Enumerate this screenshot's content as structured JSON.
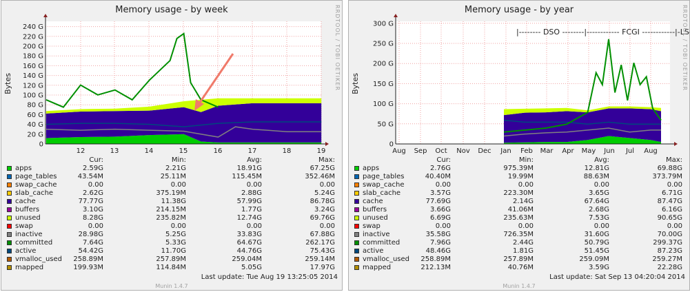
{
  "panels": [
    {
      "title": "Memory usage - by week",
      "ylabel": "Bytes",
      "rrdtool": "RRDTOOL / TOBI OETIKER",
      "y_ticks": [
        "0",
        "20 G",
        "40 G",
        "60 G",
        "80 G",
        "100 G",
        "120 G",
        "140 G",
        "160 G",
        "180 G",
        "200 G",
        "220 G",
        "240 G"
      ],
      "x_ticks": [
        "12",
        "13",
        "14",
        "15",
        "16",
        "17",
        "18",
        "19"
      ],
      "columns": [
        "Cur:",
        "Min:",
        "Avg:",
        "Max:"
      ],
      "rows": [
        {
          "name": "apps",
          "color": "#00cc00",
          "cur": "2.59G",
          "min": "2.21G",
          "avg": "18.91G",
          "max": "67.25G"
        },
        {
          "name": "page_tables",
          "color": "#0066b3",
          "cur": "43.54M",
          "min": "25.11M",
          "avg": "115.45M",
          "max": "352.46M"
        },
        {
          "name": "swap_cache",
          "color": "#ff8000",
          "cur": "0.00",
          "min": "0.00",
          "avg": "0.00",
          "max": "0.00"
        },
        {
          "name": "slab_cache",
          "color": "#ffcc00",
          "cur": "2.62G",
          "min": "375.19M",
          "avg": "2.88G",
          "max": "5.24G"
        },
        {
          "name": "cache",
          "color": "#330099",
          "cur": "77.77G",
          "min": "11.38G",
          "avg": "57.99G",
          "max": "86.78G"
        },
        {
          "name": "buffers",
          "color": "#990099",
          "cur": "3.10G",
          "min": "214.15M",
          "avg": "1.77G",
          "max": "3.24G"
        },
        {
          "name": "unused",
          "color": "#ccff00",
          "cur": "8.28G",
          "min": "235.82M",
          "avg": "12.74G",
          "max": "69.76G"
        },
        {
          "name": "swap",
          "color": "#ff0000",
          "cur": "0.00",
          "min": "0.00",
          "avg": "0.00",
          "max": "0.00"
        },
        {
          "name": "inactive",
          "color": "#808080",
          "cur": "28.98G",
          "min": "5.25G",
          "avg": "33.83G",
          "max": "67.88G"
        },
        {
          "name": "committed",
          "color": "#008f00",
          "cur": "7.64G",
          "min": "5.33G",
          "avg": "64.67G",
          "max": "262.17G"
        },
        {
          "name": "active",
          "color": "#00487d",
          "cur": "54.42G",
          "min": "11.70G",
          "avg": "44.76G",
          "max": "75.43G"
        },
        {
          "name": "vmalloc_used",
          "color": "#b35a00",
          "cur": "258.89M",
          "min": "257.89M",
          "avg": "259.04M",
          "max": "259.14M"
        },
        {
          "name": "mapped",
          "color": "#b38f00",
          "cur": "199.93M",
          "min": "114.84M",
          "avg": "5.05G",
          "max": "17.97G"
        }
      ],
      "last_update": "Last update: Tue Aug 19 13:25:05 2014",
      "munin": "Munin 1.4.7"
    },
    {
      "title": "Memory usage - by year",
      "ylabel": "Bytes",
      "rrdtool": "RRDTOOL / TOBI OETIKER",
      "y_ticks": [
        "0",
        "50 G",
        "100 G",
        "150 G",
        "200 G",
        "250 G",
        "300 G"
      ],
      "x_ticks": [
        "Aug",
        "Sep",
        "Oct",
        "Nov",
        "Dec",
        "Jan",
        "Feb",
        "Mar",
        "Apr",
        "May",
        "Jun",
        "Jul",
        "Aug"
      ],
      "annotation": "|-------- DSO --------|------------ FCGI ------------|-LS-|",
      "columns": [
        "Cur:",
        "Min:",
        "Avg:",
        "Max:"
      ],
      "rows": [
        {
          "name": "apps",
          "color": "#00cc00",
          "cur": "2.76G",
          "min": "975.39M",
          "avg": "12.81G",
          "max": "69.88G"
        },
        {
          "name": "page_tables",
          "color": "#0066b3",
          "cur": "40.40M",
          "min": "19.99M",
          "avg": "88.63M",
          "max": "373.79M"
        },
        {
          "name": "swap_cache",
          "color": "#ff8000",
          "cur": "0.00",
          "min": "0.00",
          "avg": "0.00",
          "max": "0.00"
        },
        {
          "name": "slab_cache",
          "color": "#ffcc00",
          "cur": "3.57G",
          "min": "223.30M",
          "avg": "3.65G",
          "max": "6.71G"
        },
        {
          "name": "cache",
          "color": "#330099",
          "cur": "77.69G",
          "min": "2.14G",
          "avg": "67.64G",
          "max": "87.47G"
        },
        {
          "name": "buffers",
          "color": "#990099",
          "cur": "3.66G",
          "min": "41.06M",
          "avg": "2.68G",
          "max": "6.16G"
        },
        {
          "name": "unused",
          "color": "#ccff00",
          "cur": "6.69G",
          "min": "235.63M",
          "avg": "7.53G",
          "max": "90.65G"
        },
        {
          "name": "swap",
          "color": "#ff0000",
          "cur": "0.00",
          "min": "0.00",
          "avg": "0.00",
          "max": "0.00"
        },
        {
          "name": "inactive",
          "color": "#808080",
          "cur": "35.58G",
          "min": "726.35M",
          "avg": "31.60G",
          "max": "70.00G"
        },
        {
          "name": "committed",
          "color": "#008f00",
          "cur": "7.96G",
          "min": "2.44G",
          "avg": "50.79G",
          "max": "299.37G"
        },
        {
          "name": "active",
          "color": "#00487d",
          "cur": "48.46G",
          "min": "1.81G",
          "avg": "51.45G",
          "max": "87.23G"
        },
        {
          "name": "vmalloc_used",
          "color": "#b35a00",
          "cur": "258.89M",
          "min": "257.89M",
          "avg": "259.09M",
          "max": "259.27M"
        },
        {
          "name": "mapped",
          "color": "#b38f00",
          "cur": "212.13M",
          "min": "40.76M",
          "avg": "3.59G",
          "max": "22.28G"
        }
      ],
      "last_update": "Last update: Sat Sep 13 04:20:04 2014",
      "munin": "Munin 1.4.7"
    }
  ],
  "chart_data": [
    {
      "type": "area",
      "title": "Memory usage - by week",
      "ylabel": "Bytes",
      "ylim": [
        0,
        250
      ],
      "y_unit": "G",
      "x_ticks": [
        "12",
        "13",
        "14",
        "15",
        "16",
        "17",
        "18",
        "19"
      ],
      "x_range": [
        11.0,
        19.0
      ],
      "series": [
        {
          "name": "apps",
          "color": "#00cc00",
          "x": [
            11,
            12,
            13,
            14,
            15,
            15.5,
            16,
            17,
            18,
            19
          ],
          "values": [
            12,
            14,
            15,
            18,
            20,
            5,
            3,
            3,
            3,
            3
          ]
        },
        {
          "name": "cache",
          "color": "#330099",
          "x": [
            11,
            12,
            13,
            14,
            15,
            15.5,
            16,
            17,
            18,
            19
          ],
          "values": [
            50,
            52,
            52,
            50,
            55,
            60,
            75,
            80,
            80,
            80
          ]
        },
        {
          "name": "unused",
          "color": "#ccff00",
          "x": [
            11,
            12,
            13,
            14,
            15,
            15.5,
            16,
            17,
            18,
            19
          ],
          "values": [
            5,
            5,
            5,
            8,
            12,
            25,
            15,
            10,
            10,
            10
          ]
        },
        {
          "name": "committed",
          "color": "#008f00",
          "x": [
            11,
            11.5,
            12,
            12.5,
            13,
            13.5,
            14,
            14.3,
            14.6,
            14.8,
            15,
            15.2,
            15.5,
            16
          ],
          "values": [
            90,
            75,
            120,
            100,
            110,
            90,
            130,
            150,
            170,
            215,
            225,
            125,
            90,
            75
          ]
        },
        {
          "name": "inactive",
          "color": "#808080",
          "x": [
            11,
            12,
            13,
            14,
            15,
            16,
            16.5,
            17,
            18,
            19
          ],
          "values": [
            30,
            28,
            30,
            28,
            26,
            14,
            35,
            30,
            25,
            25
          ]
        },
        {
          "name": "active",
          "color": "#00487d",
          "x": [
            11,
            12,
            13,
            14,
            15,
            16,
            17,
            18,
            19
          ],
          "values": [
            40,
            42,
            42,
            40,
            35,
            42,
            45,
            45,
            45
          ]
        }
      ]
    },
    {
      "type": "area",
      "title": "Memory usage - by year",
      "ylabel": "Bytes",
      "ylim": [
        0,
        310
      ],
      "y_unit": "G",
      "x_ticks": [
        "Aug",
        "Sep",
        "Oct",
        "Nov",
        "Dec",
        "Jan",
        "Feb",
        "Mar",
        "Apr",
        "May",
        "Jun",
        "Jul",
        "Aug"
      ],
      "series": [
        {
          "name": "apps",
          "color": "#00cc00",
          "x": [
            5.0,
            6,
            7,
            8,
            9,
            10,
            11,
            12,
            12.5
          ],
          "values": [
            3,
            4,
            5,
            5,
            10,
            20,
            15,
            10,
            5
          ]
        },
        {
          "name": "cache",
          "color": "#330099",
          "x": [
            5.0,
            6,
            7,
            8,
            9,
            10,
            11,
            12,
            12.5
          ],
          "values": [
            70,
            75,
            75,
            78,
            70,
            70,
            75,
            78,
            78
          ]
        },
        {
          "name": "unused",
          "color": "#ccff00",
          "x": [
            5.0,
            6,
            7,
            8,
            9,
            10,
            11,
            12,
            12.5
          ],
          "values": [
            15,
            10,
            10,
            8,
            5,
            5,
            5,
            5,
            8
          ]
        },
        {
          "name": "committed",
          "color": "#008f00",
          "x": [
            5.0,
            6,
            7,
            8,
            9,
            9.4,
            9.7,
            10.0,
            10.3,
            10.6,
            10.9,
            11.2,
            11.5,
            11.8,
            12.1,
            12.5
          ],
          "values": [
            30,
            35,
            40,
            50,
            80,
            180,
            150,
            265,
            130,
            200,
            110,
            205,
            150,
            170,
            90,
            60
          ]
        },
        {
          "name": "inactive",
          "color": "#808080",
          "x": [
            5.0,
            6,
            7,
            8,
            9,
            10,
            11,
            12,
            12.5
          ],
          "values": [
            20,
            25,
            28,
            30,
            35,
            40,
            30,
            35,
            35
          ]
        },
        {
          "name": "active",
          "color": "#00487d",
          "x": [
            5.0,
            6,
            7,
            8,
            9,
            10,
            11,
            12,
            12.5
          ],
          "values": [
            60,
            55,
            55,
            55,
            50,
            55,
            50,
            50,
            50
          ]
        }
      ]
    }
  ]
}
